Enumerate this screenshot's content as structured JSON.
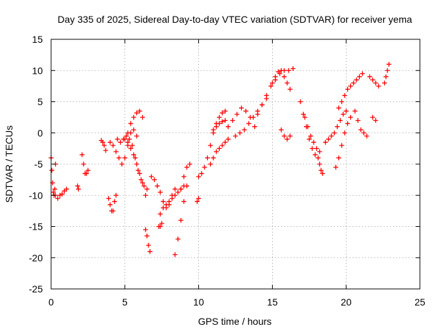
{
  "chart_data": {
    "type": "scatter",
    "title": "Day 335 of 2025, Sidereal Day-to-day VTEC variation (SDTVAR) for receiver yema",
    "xlabel": "GPS time / hours",
    "ylabel": "SDTVAR / TECUs",
    "xlim": [
      0,
      25
    ],
    "ylim": [
      -25,
      15
    ],
    "x_ticks": [
      0,
      5,
      10,
      15,
      20,
      25
    ],
    "y_ticks": [
      -25,
      -20,
      -15,
      -10,
      -5,
      0,
      5,
      10,
      15
    ],
    "x_tick_labels": [
      "0",
      "5",
      "10",
      "15",
      "20",
      "25"
    ],
    "y_tick_labels": [
      "-25",
      "-20",
      "-15",
      "-10",
      "-5",
      "0",
      "5",
      "10",
      "15"
    ],
    "grid": true,
    "marker": "+",
    "color": "#ff0000",
    "series": [
      {
        "name": "arc-1",
        "x": [
          0.0,
          0.05,
          0.1,
          0.15,
          0.2,
          0.25,
          0.3
        ],
        "y": [
          -4,
          -6,
          -8,
          -9.5,
          -10,
          -9,
          -5
        ]
      },
      {
        "name": "arc-2",
        "x": [
          0.3,
          0.45,
          0.6,
          0.75,
          0.9,
          1.05
        ],
        "y": [
          -10,
          -10.5,
          -10,
          -9.8,
          -9.3,
          -9
        ]
      },
      {
        "name": "arc-3",
        "x": [
          1.8,
          1.85
        ],
        "y": [
          -8.5,
          -9
        ]
      },
      {
        "name": "arc-4",
        "x": [
          2.1,
          2.2,
          2.3,
          2.4,
          2.5
        ],
        "y": [
          -3.5,
          -5,
          -6.5,
          -6.5,
          -6
        ]
      },
      {
        "name": "arc-5",
        "x": [
          3.4,
          3.5,
          3.6,
          3.7
        ],
        "y": [
          -1.2,
          -1.5,
          -2,
          -2.8
        ]
      },
      {
        "name": "arc-6",
        "x": [
          3.9,
          4.0,
          4.1,
          4.2,
          4.3,
          4.4
        ],
        "y": [
          -10.5,
          -11.5,
          -12.5,
          -12.5,
          -11,
          -10
        ]
      },
      {
        "name": "arc-7",
        "x": [
          4.0,
          4.2,
          4.4,
          4.6,
          4.8,
          5.0,
          5.2,
          5.4,
          5.6,
          5.8
        ],
        "y": [
          -1.5,
          -2,
          -3,
          -4,
          -5,
          -4,
          -2,
          0,
          0.5,
          -0.5
        ]
      },
      {
        "name": "arc-8",
        "x": [
          4.5,
          4.7,
          4.9,
          5.1,
          5.3,
          5.5,
          5.7,
          5.9,
          6.1,
          6.3,
          6.5
        ],
        "y": [
          -1,
          -1.5,
          -1,
          -0.5,
          -1,
          -2,
          -4,
          -6,
          -7.5,
          -8.5,
          -9
        ]
      },
      {
        "name": "arc-9",
        "x": [
          5.0,
          5.2,
          5.4,
          5.6,
          5.8,
          6.0,
          6.2,
          6.4
        ],
        "y": [
          -1,
          -1.5,
          -2.5,
          -3.5,
          -5,
          -6.5,
          -8,
          -10
        ]
      },
      {
        "name": "arc-10",
        "x": [
          5.2,
          5.4,
          5.6,
          5.8,
          6.0,
          6.2
        ],
        "y": [
          0,
          1.5,
          2.5,
          3.2,
          3.5,
          2.5
        ]
      },
      {
        "name": "arc-11",
        "x": [
          6.4,
          6.5,
          6.6,
          6.7
        ],
        "y": [
          -15.5,
          -16.5,
          -18,
          -19
        ]
      },
      {
        "name": "arc-12",
        "x": [
          6.8,
          7.0,
          7.2,
          7.4,
          7.6,
          7.8,
          8.0,
          8.2,
          8.4
        ],
        "y": [
          -7,
          -7.5,
          -8.5,
          -9.5,
          -11,
          -12,
          -11.5,
          -10,
          -9
        ]
      },
      {
        "name": "arc-13",
        "x": [
          7.4,
          7.6,
          7.8,
          8.0,
          8.2,
          8.4,
          8.6,
          8.8,
          9.0
        ],
        "y": [
          -13,
          -12,
          -11.5,
          -11,
          -10.5,
          -10,
          -9.5,
          -9,
          -8.5
        ]
      },
      {
        "name": "arc-14",
        "x": [
          7.3,
          7.4,
          7.5
        ],
        "y": [
          -15,
          -15,
          -14.5
        ]
      },
      {
        "name": "arc-15",
        "x": [
          8.4,
          8.6,
          8.8,
          9.0,
          9.2
        ],
        "y": [
          -19.5,
          -17,
          -14,
          -11,
          -8.5
        ]
      },
      {
        "name": "arc-16",
        "x": [
          8.8,
          9.0,
          9.2,
          9.4
        ],
        "y": [
          -9,
          -7,
          -5.5,
          -5
        ]
      },
      {
        "name": "arc-17",
        "x": [
          9.9,
          10.0
        ],
        "y": [
          -11,
          -10.5
        ]
      },
      {
        "name": "arc-18",
        "x": [
          10.0,
          10.2,
          10.4,
          10.6,
          10.8,
          11.0,
          11.2,
          11.4,
          11.6,
          11.8
        ],
        "y": [
          -7,
          -6.5,
          -5.5,
          -4,
          -2,
          0,
          1.5,
          2.5,
          3.2,
          3.5
        ]
      },
      {
        "name": "arc-19",
        "x": [
          10.8,
          11.0,
          11.2,
          11.4,
          11.6,
          11.8,
          12.0
        ],
        "y": [
          -5,
          -4,
          -3,
          -2.5,
          -2,
          -1.5,
          -1
        ]
      },
      {
        "name": "arc-20",
        "x": [
          11.0,
          11.2,
          11.4,
          11.6,
          11.8
        ],
        "y": [
          0.5,
          1,
          1.5,
          1.8,
          2
        ]
      },
      {
        "name": "arc-21",
        "x": [
          12.0,
          12.3,
          12.6,
          12.9,
          13.2,
          13.5,
          13.8
        ],
        "y": [
          1,
          2,
          3,
          4,
          3.5,
          2.5,
          1
        ]
      },
      {
        "name": "arc-22",
        "x": [
          12.5,
          12.8,
          13.1,
          13.4,
          13.7,
          14.0,
          14.3,
          14.6
        ],
        "y": [
          -0.5,
          0,
          0.5,
          1.5,
          2.5,
          3.5,
          4.5,
          5.5
        ]
      },
      {
        "name": "arc-23",
        "x": [
          14.0,
          14.3,
          14.6,
          14.9,
          15.2,
          15.5,
          15.8,
          16.1,
          16.4
        ],
        "y": [
          3,
          4.5,
          6,
          7.5,
          8.5,
          9.5,
          10,
          10,
          10.3
        ]
      },
      {
        "name": "arc-24",
        "x": [
          15.0,
          15.2,
          15.4,
          15.6,
          15.8,
          16.0,
          16.2
        ],
        "y": [
          8,
          9,
          9.8,
          10,
          9,
          8,
          7
        ]
      },
      {
        "name": "arc-25",
        "x": [
          15.6,
          15.8,
          16.0,
          16.2
        ],
        "y": [
          0.5,
          -0.5,
          -1,
          -0.5
        ]
      },
      {
        "name": "arc-26",
        "x": [
          16.9,
          17.1,
          17.3,
          17.5,
          17.7,
          17.9,
          18.1
        ],
        "y": [
          5,
          3,
          1,
          -1,
          -2.5,
          -3.5,
          -4
        ]
      },
      {
        "name": "arc-27",
        "x": [
          17.2,
          17.4,
          17.6,
          17.8,
          18.0,
          18.2
        ],
        "y": [
          2.5,
          1,
          -0.5,
          -1.5,
          -2.5,
          -3
        ]
      },
      {
        "name": "arc-28",
        "x": [
          18.2,
          18.3,
          18.4
        ],
        "y": [
          -5,
          -6,
          -6.5
        ]
      },
      {
        "name": "arc-29",
        "x": [
          18.6,
          18.8,
          19.0,
          19.2,
          19.4,
          19.6,
          19.8,
          20.0
        ],
        "y": [
          -1.5,
          -1,
          -0.5,
          0,
          1,
          2,
          3,
          3.5
        ]
      },
      {
        "name": "arc-30",
        "x": [
          19.3,
          19.5,
          19.7,
          19.9,
          20.1,
          20.3
        ],
        "y": [
          -5.5,
          -4,
          -2,
          0,
          1.5,
          2.5
        ]
      },
      {
        "name": "arc-31",
        "x": [
          19.5,
          19.7,
          19.9,
          20.1,
          20.3,
          20.5,
          20.7,
          20.9,
          21.1
        ],
        "y": [
          4,
          5,
          6,
          7,
          7.5,
          8,
          8.5,
          9,
          9.5
        ]
      },
      {
        "name": "arc-32",
        "x": [
          20.6,
          20.8,
          21.0,
          21.2,
          21.4
        ],
        "y": [
          3.5,
          2,
          0.5,
          0,
          -0.5
        ]
      },
      {
        "name": "arc-33",
        "x": [
          21.6,
          21.8,
          22.0,
          22.2
        ],
        "y": [
          9,
          8.5,
          8,
          7.5
        ]
      },
      {
        "name": "arc-34",
        "x": [
          21.8,
          22.0
        ],
        "y": [
          2.5,
          2
        ]
      },
      {
        "name": "arc-35",
        "x": [
          22.6,
          22.7,
          22.8,
          22.9
        ],
        "y": [
          8,
          9,
          10,
          11
        ]
      }
    ]
  }
}
